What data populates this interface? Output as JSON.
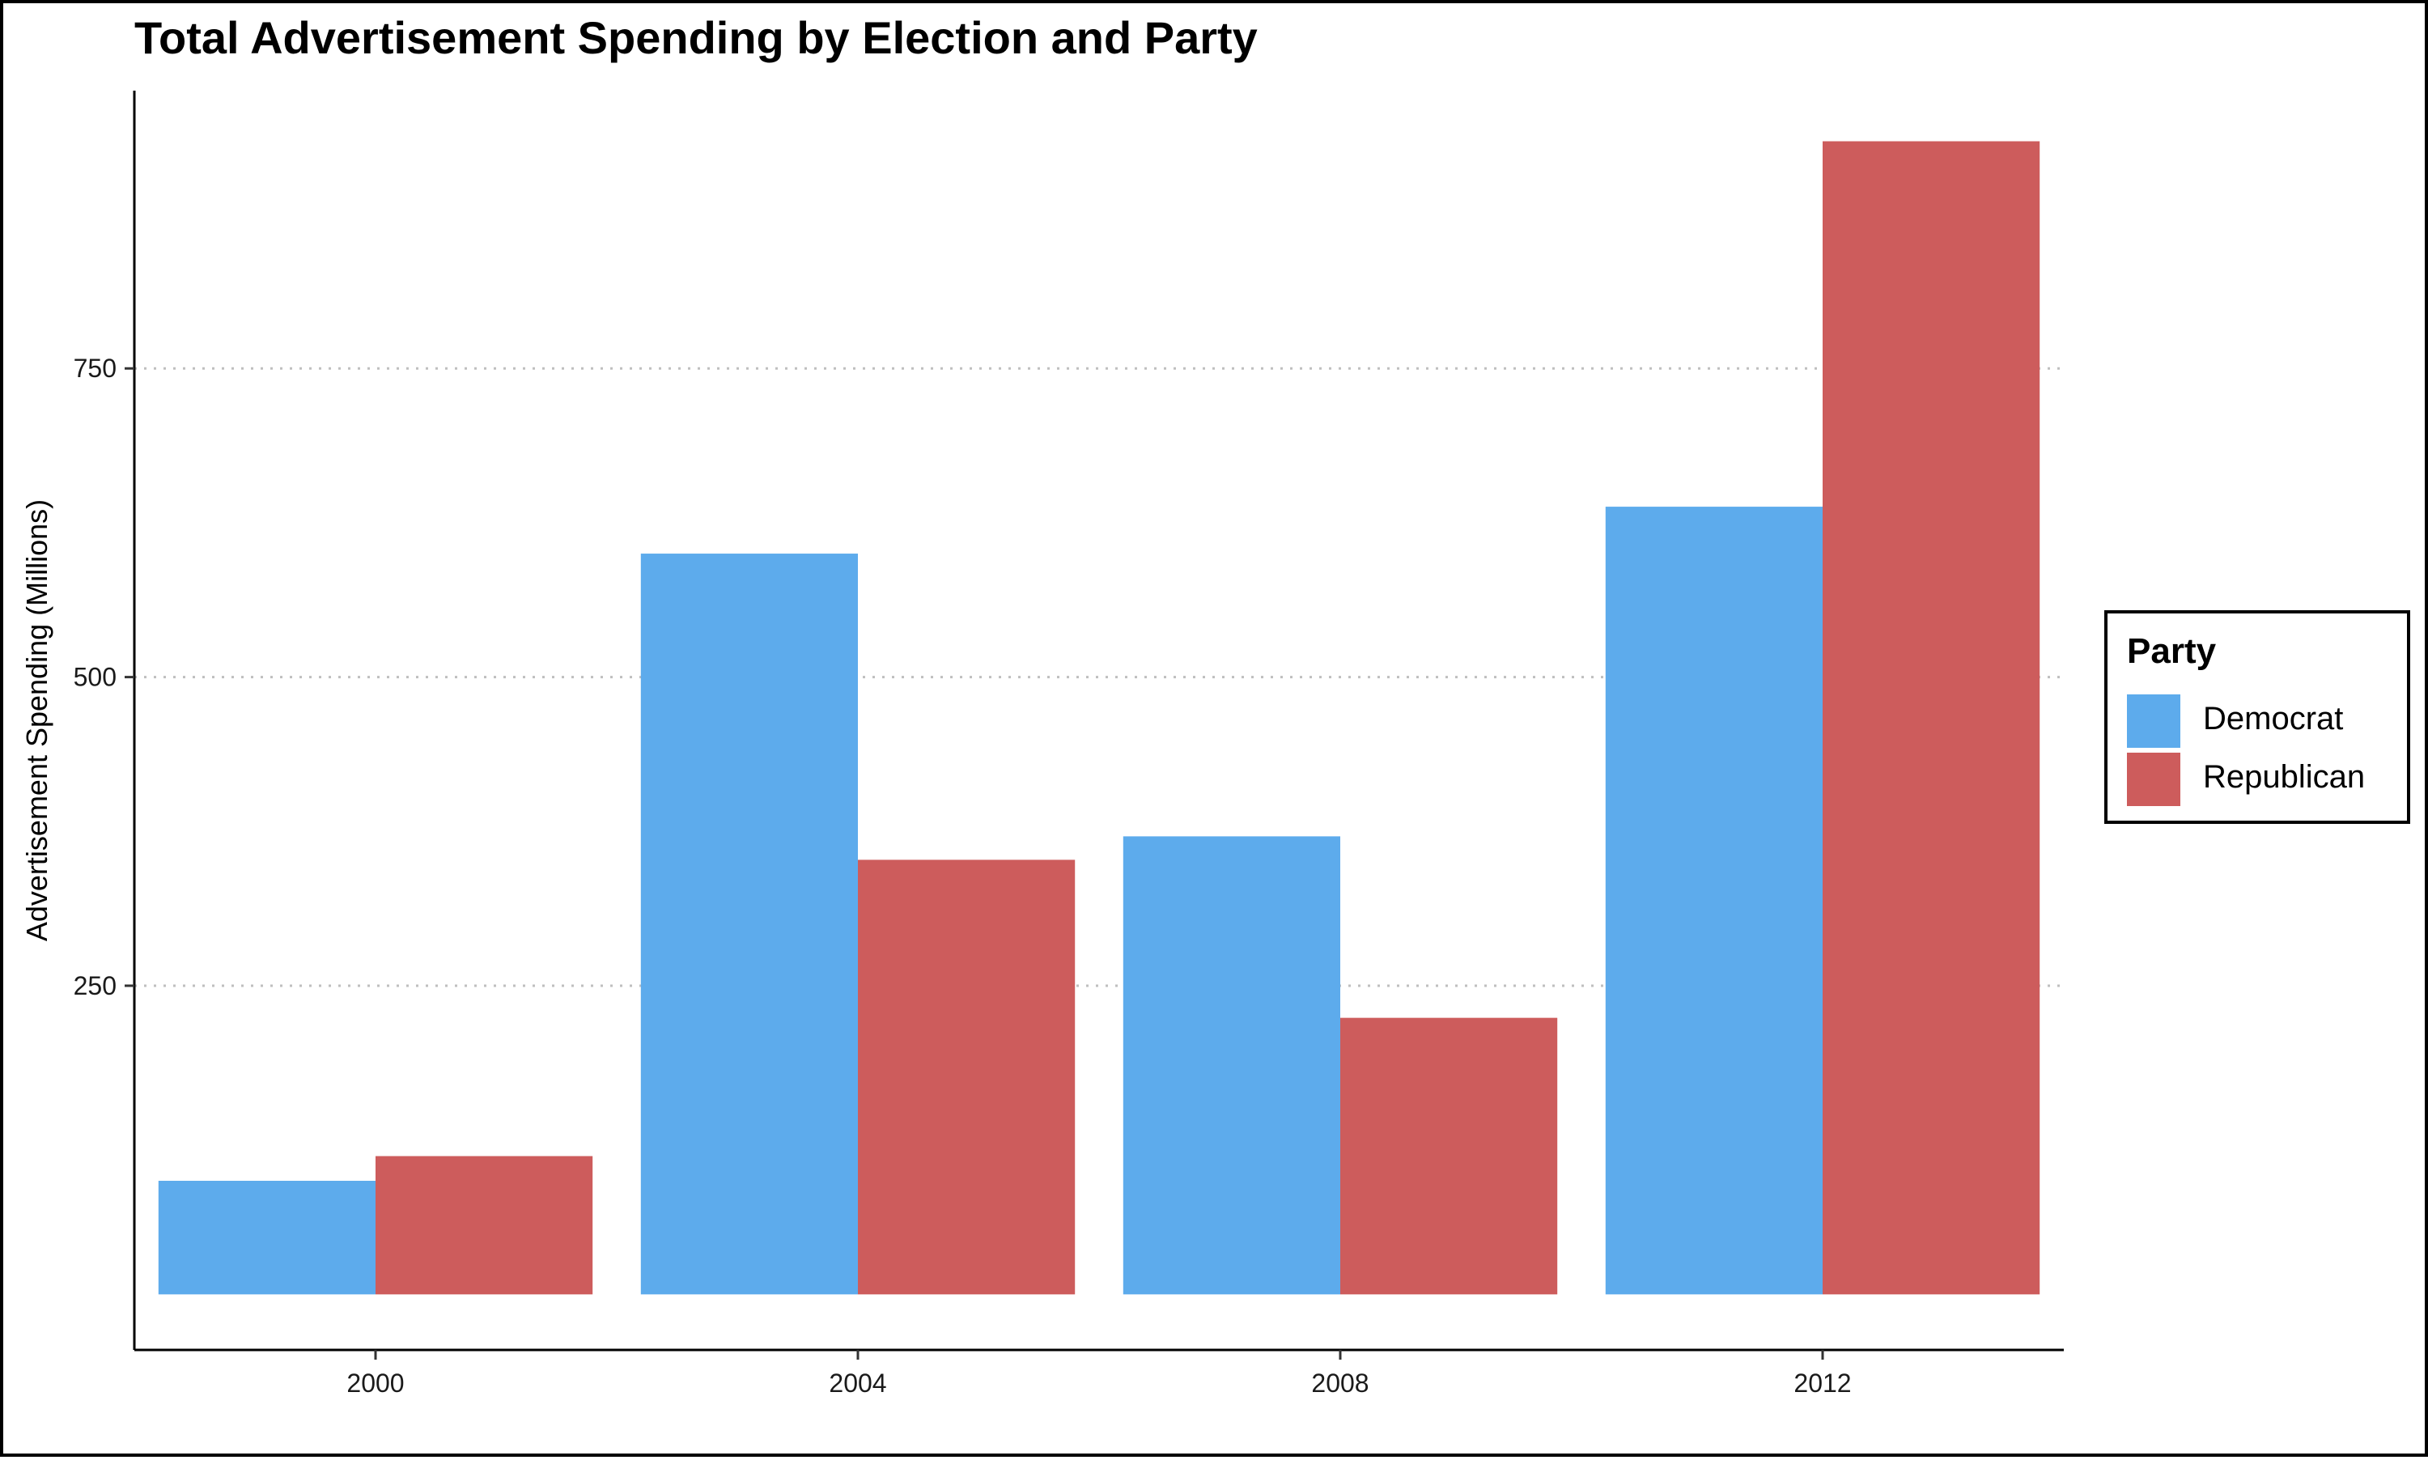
{
  "chart_data": {
    "type": "bar",
    "title": "Total Advertisement Spending by Election and Party",
    "xlabel": "",
    "ylabel": "Advertisement Spending (Millions)",
    "categories": [
      "2000",
      "2004",
      "2008",
      "2012"
    ],
    "series": [
      {
        "name": "Democrat",
        "color": "#5DABEC",
        "values": [
          92,
          600,
          371,
          638
        ]
      },
      {
        "name": "Republican",
        "color": "#CD5C5C",
        "values": [
          112,
          352,
          224,
          934
        ]
      }
    ],
    "yticks": [
      250,
      500,
      750
    ],
    "ylim": [
      -45,
      975
    ],
    "grid": {
      "horizontal": true,
      "style": "dotted",
      "color": "#bfbfbf"
    },
    "legend": {
      "title": "Party",
      "position": "right"
    }
  }
}
